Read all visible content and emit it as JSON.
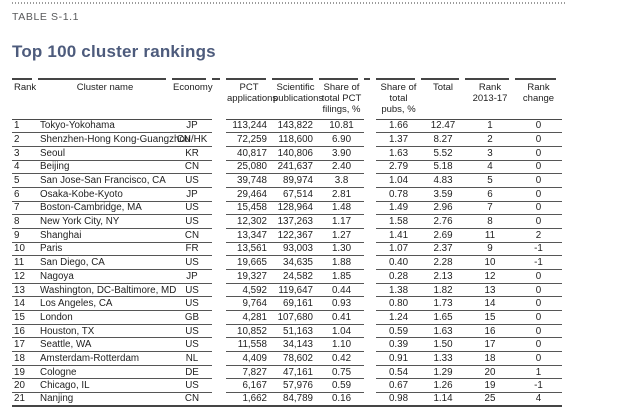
{
  "page": {
    "table_label": "TABLE S-1.1",
    "title": "Top 100 cluster rankings"
  },
  "table": {
    "columns": [
      {
        "key": "rank",
        "label": "Rank"
      },
      {
        "key": "cluster-name",
        "label": "Cluster name"
      },
      {
        "key": "economy",
        "label": "Economy"
      },
      {
        "key": "pct-applications",
        "label": "PCT applications"
      },
      {
        "key": "scientific-publications",
        "label": "Scientific publications"
      },
      {
        "key": "share-total-pct-filings",
        "label": "Share of total PCT filings, %"
      },
      {
        "key": "share-total-pubs",
        "label": "Share of total pubs, %"
      },
      {
        "key": "total",
        "label": "Total"
      },
      {
        "key": "rank-2013-17",
        "label": "Rank 2013-17"
      },
      {
        "key": "rank-change",
        "label": "Rank change"
      }
    ],
    "rows": [
      [
        "1",
        "Tokyo-Yokohama",
        "JP",
        "113,244",
        "143,822",
        "10.81",
        "1.66",
        "12.47",
        "1",
        "0"
      ],
      [
        "2",
        "Shenzhen-Hong Kong-Guangzhou",
        "CN/HK",
        "72,259",
        "118,600",
        "6.90",
        "1.37",
        "8.27",
        "2",
        "0"
      ],
      [
        "3",
        "Seoul",
        "KR",
        "40,817",
        "140,806",
        "3.90",
        "1.63",
        "5.52",
        "3",
        "0"
      ],
      [
        "4",
        "Beijing",
        "CN",
        "25,080",
        "241,637",
        "2.40",
        "2.79",
        "5.18",
        "4",
        "0"
      ],
      [
        "5",
        "San Jose-San Francisco, CA",
        "US",
        "39,748",
        "89,974",
        "3.8",
        "1.04",
        "4.83",
        "5",
        "0"
      ],
      [
        "6",
        "Osaka-Kobe-Kyoto",
        "JP",
        "29,464",
        "67,514",
        "2.81",
        "0.78",
        "3.59",
        "6",
        "0"
      ],
      [
        "7",
        "Boston-Cambridge, MA",
        "US",
        "15,458",
        "128,964",
        "1.48",
        "1.49",
        "2.96",
        "7",
        "0"
      ],
      [
        "8",
        "New York City, NY",
        "US",
        "12,302",
        "137,263",
        "1.17",
        "1.58",
        "2.76",
        "8",
        "0"
      ],
      [
        "9",
        "Shanghai",
        "CN",
        "13,347",
        "122,367",
        "1.27",
        "1.41",
        "2.69",
        "11",
        "2"
      ],
      [
        "10",
        "Paris",
        "FR",
        "13,561",
        "93,003",
        "1.30",
        "1.07",
        "2.37",
        "9",
        "-1"
      ],
      [
        "11",
        "San Diego, CA",
        "US",
        "19,665",
        "34,635",
        "1.88",
        "0.40",
        "2.28",
        "10",
        "-1"
      ],
      [
        "12",
        "Nagoya",
        "JP",
        "19,327",
        "24,582",
        "1.85",
        "0.28",
        "2.13",
        "12",
        "0"
      ],
      [
        "13",
        "Washington, DC-Baltimore, MD",
        "US",
        "4,592",
        "119,647",
        "0.44",
        "1.38",
        "1.82",
        "13",
        "0"
      ],
      [
        "14",
        "Los Angeles, CA",
        "US",
        "9,764",
        "69,161",
        "0.93",
        "0.80",
        "1.73",
        "14",
        "0"
      ],
      [
        "15",
        "London",
        "GB",
        "4,281",
        "107,680",
        "0.41",
        "1.24",
        "1.65",
        "15",
        "0"
      ],
      [
        "16",
        "Houston, TX",
        "US",
        "10,852",
        "51,163",
        "1.04",
        "0.59",
        "1.63",
        "16",
        "0"
      ],
      [
        "17",
        "Seattle, WA",
        "US",
        "11,558",
        "34,143",
        "1.10",
        "0.39",
        "1.50",
        "17",
        "0"
      ],
      [
        "18",
        "Amsterdam-Rotterdam",
        "NL",
        "4,409",
        "78,602",
        "0.42",
        "0.91",
        "1.33",
        "18",
        "0"
      ],
      [
        "19",
        "Cologne",
        "DE",
        "7,827",
        "47,161",
        "0.75",
        "0.54",
        "1.29",
        "20",
        "1"
      ],
      [
        "20",
        "Chicago, IL",
        "US",
        "6,167",
        "57,976",
        "0.59",
        "0.67",
        "1.26",
        "19",
        "-1"
      ],
      [
        "21",
        "Nanjing",
        "CN",
        "1,662",
        "84,789",
        "0.16",
        "0.98",
        "1.14",
        "25",
        "4"
      ]
    ]
  }
}
